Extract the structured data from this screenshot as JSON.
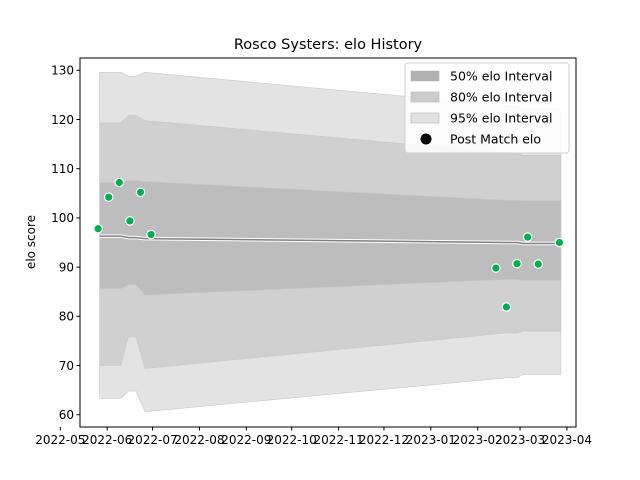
{
  "chart_data": {
    "type": "line",
    "title": "Rosco Systers: elo History",
    "xlabel": "",
    "ylabel": "elo score",
    "ylim": [
      57.5,
      132.5
    ],
    "xlim": [
      "2022-05-14",
      "2023-04-07"
    ],
    "yticks": [
      60,
      70,
      80,
      90,
      100,
      110,
      120,
      130
    ],
    "xticks": [
      "2022-05",
      "2022-06",
      "2022-07",
      "2022-08",
      "2022-09",
      "2022-10",
      "2022-11",
      "2022-12",
      "2023-01",
      "2023-02",
      "2023-03",
      "2023-04"
    ],
    "grid": false,
    "legend_position": "top-right",
    "bands": [
      {
        "name": "95% elo Interval",
        "color": "#e3e3e3",
        "points": [
          {
            "date": "2022-05-27",
            "lo": 63.3,
            "hi": 129.6
          },
          {
            "date": "2022-06-10",
            "lo": 63.3,
            "hi": 129.6
          },
          {
            "date": "2022-06-15",
            "lo": 64.8,
            "hi": 128.8
          },
          {
            "date": "2022-06-20",
            "lo": 64.8,
            "hi": 128.8
          },
          {
            "date": "2022-06-26",
            "lo": 60.6,
            "hi": 129.6
          },
          {
            "date": "2023-02-20",
            "lo": 67.5,
            "hi": 122.8
          },
          {
            "date": "2023-02-27",
            "lo": 67.5,
            "hi": 122.8
          },
          {
            "date": "2023-03-03",
            "lo": 68.2,
            "hi": 122.2
          },
          {
            "date": "2023-03-28",
            "lo": 68.2,
            "hi": 122.2
          }
        ]
      },
      {
        "name": "80% elo Interval",
        "color": "#d0d0d0",
        "points": [
          {
            "date": "2022-05-27",
            "lo": 70.0,
            "hi": 119.3
          },
          {
            "date": "2022-06-10",
            "lo": 70.0,
            "hi": 119.3
          },
          {
            "date": "2022-06-15",
            "lo": 75.8,
            "hi": 120.8
          },
          {
            "date": "2022-06-20",
            "lo": 75.8,
            "hi": 120.8
          },
          {
            "date": "2022-06-26",
            "lo": 69.4,
            "hi": 119.8
          },
          {
            "date": "2023-02-20",
            "lo": 76.6,
            "hi": 113.2
          },
          {
            "date": "2023-02-27",
            "lo": 76.6,
            "hi": 113.2
          },
          {
            "date": "2023-03-03",
            "lo": 77.0,
            "hi": 112.7
          },
          {
            "date": "2023-03-28",
            "lo": 77.0,
            "hi": 112.7
          }
        ]
      },
      {
        "name": "50% elo Interval",
        "color": "#bdbdbd",
        "points": [
          {
            "date": "2022-05-27",
            "lo": 85.6,
            "hi": 107.2
          },
          {
            "date": "2022-06-10",
            "lo": 85.6,
            "hi": 107.2
          },
          {
            "date": "2022-06-15",
            "lo": 86.4,
            "hi": 107.6
          },
          {
            "date": "2022-06-20",
            "lo": 86.4,
            "hi": 107.6
          },
          {
            "date": "2022-06-26",
            "lo": 84.3,
            "hi": 107.4
          },
          {
            "date": "2023-02-20",
            "lo": 87.5,
            "hi": 103.6
          },
          {
            "date": "2023-02-27",
            "lo": 87.5,
            "hi": 103.6
          },
          {
            "date": "2023-03-03",
            "lo": 87.3,
            "hi": 103.5
          },
          {
            "date": "2023-03-28",
            "lo": 87.3,
            "hi": 103.5
          }
        ]
      }
    ],
    "series": [
      {
        "kind": "line",
        "color": "#808080",
        "points": [
          {
            "date": "2022-05-27",
            "value": 96.3
          },
          {
            "date": "2022-06-10",
            "value": 96.3
          },
          {
            "date": "2022-06-15",
            "value": 96.0
          },
          {
            "date": "2022-06-20",
            "value": 96.0
          },
          {
            "date": "2022-06-26",
            "value": 95.8
          },
          {
            "date": "2023-02-20",
            "value": 95.0
          },
          {
            "date": "2023-02-27",
            "value": 95.0
          },
          {
            "date": "2023-03-03",
            "value": 94.8
          },
          {
            "date": "2023-03-28",
            "value": 94.8
          }
        ]
      },
      {
        "name": "Post Match elo",
        "kind": "scatter",
        "color": "#00b050",
        "points": [
          {
            "date": "2022-05-26",
            "value": 97.8
          },
          {
            "date": "2022-06-02",
            "value": 104.2
          },
          {
            "date": "2022-06-09",
            "value": 107.2
          },
          {
            "date": "2022-06-16",
            "value": 99.4
          },
          {
            "date": "2022-06-23",
            "value": 105.2
          },
          {
            "date": "2022-06-30",
            "value": 96.6
          },
          {
            "date": "2023-02-13",
            "value": 89.8
          },
          {
            "date": "2023-02-20",
            "value": 81.9
          },
          {
            "date": "2023-02-27",
            "value": 90.7
          },
          {
            "date": "2023-03-06",
            "value": 96.1
          },
          {
            "date": "2023-03-13",
            "value": 90.6
          },
          {
            "date": "2023-03-27",
            "value": 95.0
          }
        ]
      }
    ],
    "legend": [
      {
        "label": "50% elo Interval",
        "marker": "patch",
        "color": "#b0b0b0"
      },
      {
        "label": "80% elo Interval",
        "marker": "patch",
        "color": "#cccccc"
      },
      {
        "label": "95% elo Interval",
        "marker": "patch",
        "color": "#e1e1e1"
      },
      {
        "label": "Post Match elo",
        "marker": "dot",
        "color": "#000000"
      }
    ]
  }
}
